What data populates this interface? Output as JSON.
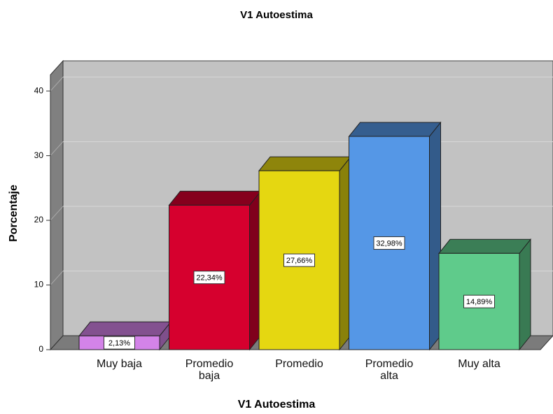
{
  "chart_data": {
    "type": "bar3d",
    "title": "V1 Autoestima",
    "x_label": "V1 Autoestima",
    "y_label": "Porcentaje",
    "categories": [
      "Muy baja",
      "Promedio baja",
      "Promedio",
      "Promedio alta",
      "Muy alta"
    ],
    "values": [
      2.13,
      22.34,
      27.66,
      32.98,
      14.89
    ],
    "value_labels": [
      "2,13%",
      "22,34%",
      "27,66%",
      "32,98%",
      "14,89%"
    ],
    "colors": [
      "#d383e8",
      "#d6002e",
      "#e5d711",
      "#5597e6",
      "#5fcb8b"
    ],
    "ylim": [
      0,
      42.5
    ],
    "yticks": [
      0,
      10,
      20,
      30,
      40
    ],
    "grid": true
  }
}
